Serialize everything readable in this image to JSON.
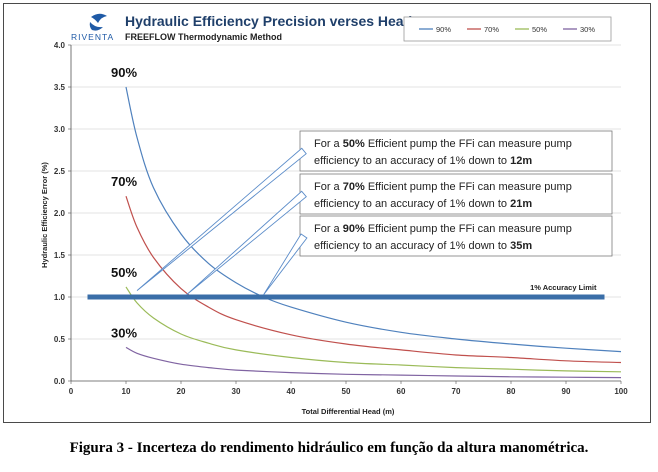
{
  "logo": {
    "text": "RIVENTA"
  },
  "caption": "Figura 3 -  Incerteza do rendimento hidráulico em função da altura manométrica.",
  "colors": {
    "c90": "#4f81bd",
    "c70": "#c0504d",
    "c50": "#9bbb59",
    "c30": "#8064a2",
    "limit": "#3a6ea8",
    "title": "#1f3f6a"
  },
  "chart_data": {
    "type": "line",
    "title": "Hydraulic Efficiency Precision verses Head",
    "subtitle": "FREEFLOW Thermodynamic Method",
    "xlabel": "Total Differential Head (m)",
    "ylabel": "Hydraulic Efficiency Error (%)",
    "xlim": [
      0,
      100
    ],
    "ylim": [
      0,
      4.0
    ],
    "xticks": [
      "0",
      "10",
      "20",
      "30",
      "40",
      "50",
      "60",
      "70",
      "80",
      "90",
      "100"
    ],
    "yticks": [
      "0.0",
      "0.5",
      "1.0",
      "1.5",
      "2.0",
      "2.5",
      "3.0",
      "3.5",
      "4.0"
    ],
    "grid": true,
    "legend_position": "top-right",
    "series": [
      {
        "name": "90%",
        "label": "90%",
        "x": [
          10,
          12,
          15,
          20,
          25,
          30,
          35,
          40,
          50,
          60,
          70,
          80,
          90,
          100
        ],
        "values": [
          3.5,
          2.9,
          2.3,
          1.75,
          1.4,
          1.17,
          1.0,
          0.88,
          0.7,
          0.58,
          0.5,
          0.44,
          0.39,
          0.35
        ]
      },
      {
        "name": "70%",
        "label": "70%",
        "x": [
          10,
          12,
          15,
          20,
          25,
          30,
          40,
          50,
          60,
          70,
          80,
          90,
          100
        ],
        "values": [
          2.2,
          1.83,
          1.47,
          1.1,
          0.88,
          0.73,
          0.55,
          0.44,
          0.37,
          0.31,
          0.28,
          0.24,
          0.22
        ]
      },
      {
        "name": "50%",
        "label": "50%",
        "x": [
          10,
          12,
          15,
          20,
          25,
          30,
          40,
          50,
          60,
          70,
          80,
          90,
          100
        ],
        "values": [
          1.12,
          0.93,
          0.75,
          0.56,
          0.45,
          0.37,
          0.28,
          0.22,
          0.19,
          0.16,
          0.14,
          0.12,
          0.11
        ]
      },
      {
        "name": "30%",
        "label": "30%",
        "x": [
          10,
          12,
          15,
          20,
          25,
          30,
          40,
          50,
          60,
          70,
          80,
          90,
          100
        ],
        "values": [
          0.4,
          0.33,
          0.27,
          0.2,
          0.16,
          0.13,
          0.1,
          0.08,
          0.07,
          0.06,
          0.05,
          0.045,
          0.04
        ]
      }
    ],
    "limit_line": {
      "y": 1.0,
      "x_start": 3,
      "x_end": 97,
      "label": "1% Accuracy Limit"
    },
    "annotations": [
      {
        "target_x": 12,
        "target_y": 1.1,
        "line1_pre": "For a ",
        "line1_bold": "50%",
        "line1_post": " Efficient pump the FFi can measure pump",
        "line2_pre": "efficiency to an accuracy of 1% down to ",
        "line2_bold": "12m"
      },
      {
        "target_x": 21,
        "target_y": 1.05,
        "line1_pre": "For a ",
        "line1_bold": "70%",
        "line1_post": " Efficient pump the FFi can measure pump",
        "line2_pre": "efficiency to an accuracy of 1% down to ",
        "line2_bold": "21m"
      },
      {
        "target_x": 35,
        "target_y": 1.05,
        "line1_pre": "For a ",
        "line1_bold": "90%",
        "line1_post": " Efficient pump the FFi can measure pump",
        "line2_pre": "efficiency to an accuracy of 1% down to ",
        "line2_bold": "35m"
      }
    ]
  }
}
